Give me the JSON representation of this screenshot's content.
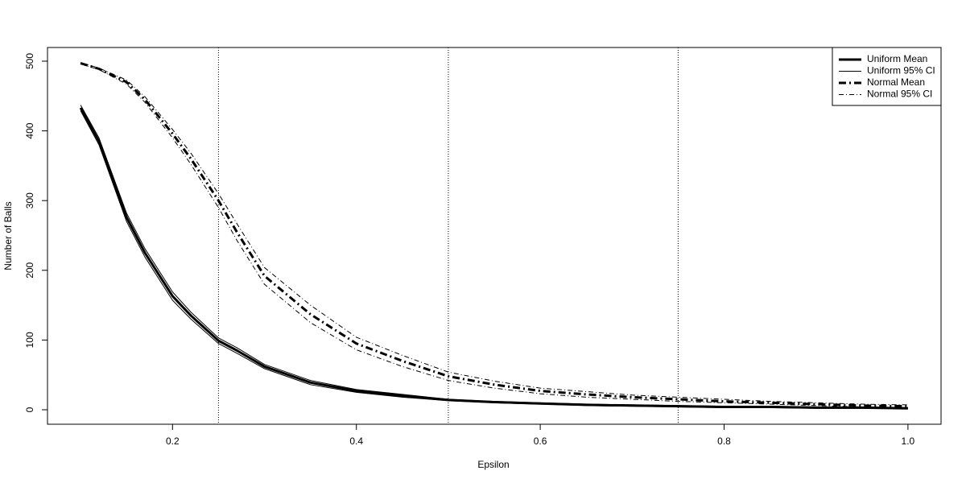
{
  "chart_data": {
    "type": "line",
    "x_label": "Epsilon",
    "y_label": "Number of Balls",
    "x": [
      0.1,
      0.12,
      0.15,
      0.17,
      0.2,
      0.22,
      0.25,
      0.27,
      0.3,
      0.35,
      0.4,
      0.45,
      0.5,
      0.55,
      0.6,
      0.65,
      0.7,
      0.75,
      0.8,
      0.85,
      0.9,
      0.95,
      1.0
    ],
    "series": [
      {
        "name": "Uniform Mean",
        "color": "#000000",
        "width": 3,
        "dash": "none",
        "values": [
          433,
          385,
          276,
          225,
          163,
          135,
          99,
          85,
          62,
          39,
          27,
          20,
          14,
          11,
          9,
          7,
          6,
          5,
          4,
          4,
          3,
          3,
          2
        ]
      },
      {
        "name": "Uniform 95% CI",
        "color": "#000000",
        "width": 1,
        "dash": "none",
        "lower": [
          429,
          380,
          270,
          219,
          157,
          130,
          95,
          81,
          59,
          36,
          25,
          18,
          13,
          10,
          8,
          6,
          5,
          4,
          3,
          3,
          2,
          2,
          2
        ],
        "upper": [
          437,
          390,
          282,
          231,
          169,
          140,
          103,
          89,
          65,
          42,
          29,
          22,
          15,
          12,
          10,
          8,
          7,
          6,
          5,
          5,
          4,
          4,
          3
        ]
      },
      {
        "name": "Normal Mean",
        "color": "#000000",
        "width": 3,
        "dash": "9,4,2,4",
        "values": [
          497,
          489,
          470,
          445,
          396,
          360,
          300,
          255,
          192,
          137,
          95,
          70,
          48,
          36,
          27,
          22,
          18,
          15,
          12,
          10,
          8,
          6,
          5
        ]
      },
      {
        "name": "Normal 95% CI",
        "color": "#000000",
        "width": 1,
        "dash": "6,3,1,3",
        "lower": [
          496,
          488,
          467,
          441,
          390,
          352,
          290,
          243,
          180,
          125,
          86,
          62,
          42,
          31,
          23,
          18,
          15,
          12,
          10,
          8,
          6,
          4,
          3
        ],
        "upper": [
          498,
          490,
          473,
          449,
          402,
          368,
          310,
          267,
          204,
          150,
          104,
          78,
          54,
          41,
          31,
          26,
          21,
          18,
          15,
          12,
          10,
          8,
          7
        ]
      }
    ],
    "vlines": [
      0.25,
      0.5,
      0.75
    ],
    "xlim": [
      0.064,
      1.036
    ],
    "ylim": [
      -20.8,
      519.6
    ],
    "xticks": [
      0.2,
      0.4,
      0.6,
      0.8,
      {
        "value": 1,
        "label": "1.0"
      }
    ],
    "yticks": [
      0,
      100,
      200,
      300,
      400,
      500
    ],
    "legend": "top-right"
  }
}
